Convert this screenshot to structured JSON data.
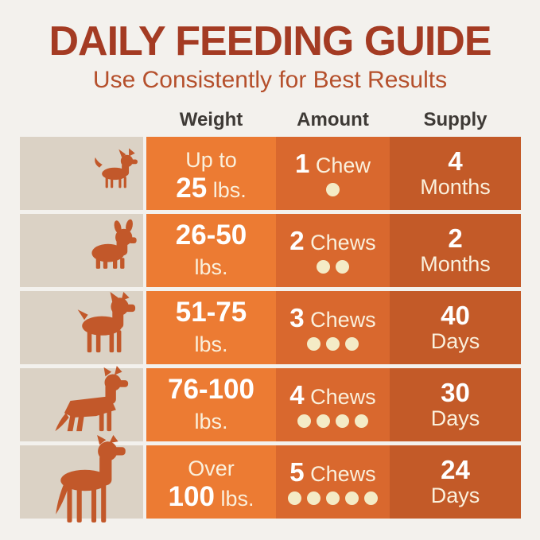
{
  "header": {
    "title": "DAILY FEEDING GUIDE",
    "subtitle": "Use Consistently for Best Results",
    "columns": {
      "weight": "Weight",
      "amount": "Amount",
      "supply": "Supply"
    }
  },
  "colors": {
    "page_bg": "#F3F1ED",
    "title_text": "#A43B23",
    "subtitle_text": "#B5502C",
    "column_header_text": "#3E3A36",
    "icon_column_bg": "#DBD2C5",
    "weight_column_bg": "#EC7B33",
    "amount_column_bg": "#D9682E",
    "supply_column_bg": "#C35A28",
    "dog_silhouette": "#C2582A",
    "chew_dot": "#F4EBC6",
    "bold_text": "#FFFFFF",
    "regular_text": "#FAF0DC"
  },
  "rows": [
    {
      "dog": "chihuahua",
      "weight": {
        "l1_bold": "",
        "l1_reg": "Up to",
        "l2_bold": "25",
        "l2_reg": " lbs."
      },
      "amount": {
        "count": "1",
        "unit": " Chew",
        "dots": 1
      },
      "supply": {
        "value": "4",
        "unit": "Months"
      }
    },
    {
      "dog": "french-bulldog",
      "weight": {
        "l1_bold": "26-50",
        "l1_reg": "",
        "l2_bold": "",
        "l2_reg": "lbs."
      },
      "amount": {
        "count": "2",
        "unit": " Chews",
        "dots": 2
      },
      "supply": {
        "value": "2",
        "unit": "Months"
      }
    },
    {
      "dog": "boxer",
      "weight": {
        "l1_bold": "51-75",
        "l1_reg": "",
        "l2_bold": "",
        "l2_reg": "lbs."
      },
      "amount": {
        "count": "3",
        "unit": " Chews",
        "dots": 3
      },
      "supply": {
        "value": "40",
        "unit": "Days"
      }
    },
    {
      "dog": "german-shepherd",
      "weight": {
        "l1_bold": "76-100",
        "l1_reg": "",
        "l2_bold": "",
        "l2_reg": "lbs."
      },
      "amount": {
        "count": "4",
        "unit": " Chews",
        "dots": 4
      },
      "supply": {
        "value": "30",
        "unit": "Days"
      }
    },
    {
      "dog": "great-dane",
      "weight": {
        "l1_bold": "",
        "l1_reg": "Over",
        "l2_bold": "100",
        "l2_reg": " lbs."
      },
      "amount": {
        "count": "5",
        "unit": " Chews",
        "dots": 5
      },
      "supply": {
        "value": "24",
        "unit": "Days"
      }
    }
  ],
  "chart_data": {
    "type": "table",
    "title": "DAILY FEEDING GUIDE",
    "subtitle": "Use Consistently for Best Results",
    "columns": [
      "Weight",
      "Amount",
      "Supply"
    ],
    "rows": [
      [
        "Up to 25 lbs.",
        "1 Chew",
        "4 Months"
      ],
      [
        "26-50 lbs.",
        "2 Chews",
        "2 Months"
      ],
      [
        "51-75 lbs.",
        "3 Chews",
        "40 Days"
      ],
      [
        "76-100 lbs.",
        "4 Chews",
        "30 Days"
      ],
      [
        "Over 100 lbs.",
        "5 Chews",
        "24 Days"
      ]
    ],
    "notes": "Dog silhouettes increase in size per row; chew amounts shown as cream dots."
  }
}
